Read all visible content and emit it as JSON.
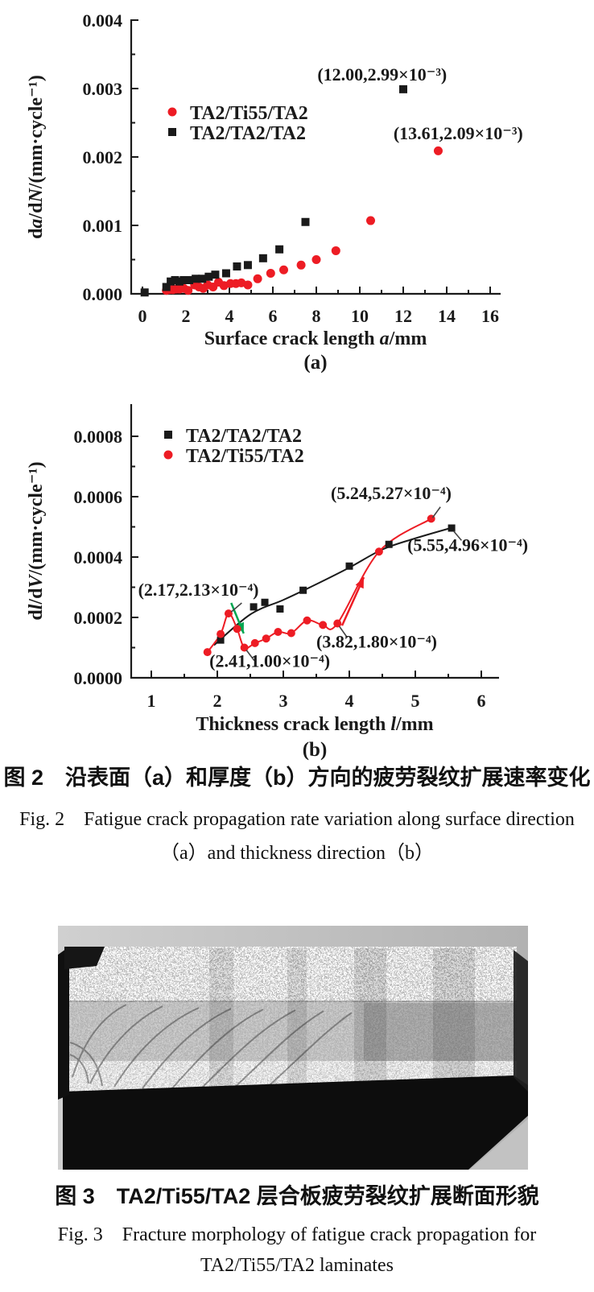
{
  "figure2": {
    "caption_zh": "图 2　沿表面（a）和厚度（b）方向的疲劳裂纹扩展速率变化",
    "caption_en_line1": "Fig. 2　Fatigue crack propagation rate variation along surface direction",
    "caption_en_line2": "（a）and thickness direction（b）"
  },
  "figure3": {
    "caption_zh": "图 3　TA2/Ti55/TA2 层合板疲劳裂纹扩展断面形貌",
    "caption_en_line1": "Fig. 3　Fracture morphology of fatigue crack propagation for",
    "caption_en_line2": "TA2/Ti55/TA2 laminates"
  },
  "chart_data": [
    {
      "id": "a",
      "type": "scatter",
      "sublabel": "(a)",
      "xlabel_parts": [
        [
          "Surface crack length ",
          0
        ],
        [
          "a",
          1
        ],
        [
          "/mm",
          0
        ]
      ],
      "ylabel_parts": [
        [
          "d",
          0
        ],
        [
          "a",
          1
        ],
        [
          "/d",
          0
        ],
        [
          "N",
          1
        ],
        [
          "/(mm·cycle⁻¹)",
          0
        ]
      ],
      "xlim": [
        0,
        16
      ],
      "ylim": [
        0,
        0.004
      ],
      "grid": false,
      "legend_position": "upper-left-inside",
      "x_ticks": [
        0,
        2,
        4,
        6,
        8,
        10,
        12,
        14,
        16
      ],
      "x_minor": [
        1,
        3,
        5,
        7,
        9,
        11,
        13,
        15
      ],
      "y_ticks": [
        {
          "v": 0,
          "label": "0.000"
        },
        {
          "v": 0.001,
          "label": "0.001"
        },
        {
          "v": 0.002,
          "label": "0.002"
        },
        {
          "v": 0.003,
          "label": "0.003"
        },
        {
          "v": 0.004,
          "label": "0.004"
        }
      ],
      "y_minor": [
        0.0005,
        0.0015,
        0.0025,
        0.0035
      ],
      "legend": [
        {
          "marker": "circle",
          "color": "#ed1c24",
          "label": "TA2/Ti55/TA2"
        },
        {
          "marker": "square",
          "color": "#1a1a1a",
          "label": "TA2/TA2/TA2"
        }
      ],
      "series": [
        {
          "name": "TA2/Ti55/TA2",
          "marker": "circle",
          "color": "#ed1c24",
          "points": [
            [
              1.1,
              5e-05
            ],
            [
              1.25,
              6e-05
            ],
            [
              1.4,
              6e-05
            ],
            [
              1.55,
              7e-05
            ],
            [
              1.7,
              7e-05
            ],
            [
              1.9,
              8e-05
            ],
            [
              2.1,
              5e-05
            ],
            [
              2.4,
              0.00013
            ],
            [
              2.6,
              0.0001
            ],
            [
              2.8,
              8e-05
            ],
            [
              3.0,
              0.00013
            ],
            [
              3.25,
              0.0001
            ],
            [
              3.5,
              0.00017
            ],
            [
              3.75,
              0.00012
            ],
            [
              4.05,
              0.00015
            ],
            [
              4.3,
              0.00015
            ],
            [
              4.55,
              0.00016
            ],
            [
              4.85,
              0.00013
            ],
            [
              5.3,
              0.00022
            ],
            [
              5.9,
              0.0003
            ],
            [
              6.5,
              0.00035
            ],
            [
              7.3,
              0.00042
            ],
            [
              8.0,
              0.0005
            ],
            [
              8.9,
              0.00063
            ],
            [
              10.5,
              0.00107
            ],
            [
              13.61,
              0.00209
            ]
          ]
        },
        {
          "name": "TA2/TA2/TA2",
          "marker": "square",
          "color": "#1a1a1a",
          "points": [
            [
              0.1,
              2e-05
            ],
            [
              1.1,
              0.0001
            ],
            [
              1.3,
              0.00018
            ],
            [
              1.5,
              0.0002
            ],
            [
              1.7,
              0.00018
            ],
            [
              1.9,
              0.0002
            ],
            [
              2.15,
              0.0002
            ],
            [
              2.45,
              0.00022
            ],
            [
              2.75,
              0.00022
            ],
            [
              3.05,
              0.00025
            ],
            [
              3.35,
              0.00028
            ],
            [
              3.85,
              0.0003
            ],
            [
              4.35,
              0.0004
            ],
            [
              4.85,
              0.00042
            ],
            [
              5.55,
              0.00052
            ],
            [
              6.3,
              0.00065
            ],
            [
              7.5,
              0.00105
            ],
            [
              12.0,
              0.00299
            ]
          ]
        }
      ],
      "annotations": [
        {
          "text": "(12.00,2.99×10⁻³)",
          "point": [
            12.0,
            0.00299
          ],
          "label_pos": [
            8.05,
            0.00312
          ]
        },
        {
          "text": "(13.61,2.09×10⁻³)",
          "point": [
            13.61,
            0.00209
          ],
          "label_pos": [
            11.55,
            0.00226
          ]
        }
      ],
      "arrows": []
    },
    {
      "id": "b",
      "type": "scatter-line",
      "sublabel": "(b)",
      "xlabel_parts": [
        [
          "Thickness crack length ",
          0
        ],
        [
          "l",
          1
        ],
        [
          "/mm",
          0
        ]
      ],
      "ylabel_parts": [
        [
          "d",
          0
        ],
        [
          "l",
          1
        ],
        [
          "/d",
          0
        ],
        [
          "V",
          1
        ],
        [
          "/(mm·cycle⁻¹)",
          0
        ]
      ],
      "xlim": [
        1,
        6
      ],
      "ylim": [
        0,
        0.0008
      ],
      "grid": false,
      "legend_position": "upper-left-inside",
      "x_ticks": [
        1,
        2,
        3,
        4,
        5,
        6
      ],
      "x_minor": [
        1.5,
        2.5,
        3.5,
        4.5,
        5.5
      ],
      "y_ticks": [
        {
          "v": 0,
          "label": "0.0000"
        },
        {
          "v": 0.0002,
          "label": "0.0002"
        },
        {
          "v": 0.0004,
          "label": "0.0004"
        },
        {
          "v": 0.0006,
          "label": "0.0006"
        },
        {
          "v": 0.0008,
          "label": "0.0008"
        }
      ],
      "y_minor": [
        0.0001,
        0.0003,
        0.0005,
        0.0007
      ],
      "legend": [
        {
          "marker": "square",
          "color": "#1a1a1a",
          "label": "TA2/TA2/TA2"
        },
        {
          "marker": "circle",
          "color": "#ed1c24",
          "label": "TA2/Ti55/TA2"
        }
      ],
      "series": [
        {
          "name": "TA2/TA2/TA2",
          "marker": "square",
          "color": "#1a1a1a",
          "points": [
            [
              2.05,
              0.000125
            ],
            [
              2.55,
              0.000235
            ],
            [
              2.72,
              0.00025
            ],
            [
              2.95,
              0.000228
            ],
            [
              3.3,
              0.00029
            ],
            [
              4.0,
              0.00037
            ],
            [
              4.6,
              0.000442
            ],
            [
              5.55,
              0.000496
            ]
          ],
          "line_points": [
            [
              1.95,
              0.000108
            ],
            [
              2.5,
              0.00021
            ],
            [
              3.0,
              0.000258
            ],
            [
              3.5,
              0.00031
            ],
            [
              4.0,
              0.000365
            ],
            [
              4.5,
              0.000425
            ],
            [
              5.0,
              0.000462
            ],
            [
              5.55,
              0.000497
            ]
          ]
        },
        {
          "name": "TA2/Ti55/TA2",
          "marker": "circle",
          "color": "#ed1c24",
          "line": "self",
          "points": [
            [
              1.85,
              8.5e-05
            ],
            [
              2.05,
              0.000145
            ],
            [
              2.17,
              0.000213
            ],
            [
              2.3,
              0.000162
            ],
            [
              2.41,
              0.0001
            ],
            [
              2.57,
              0.000115
            ],
            [
              2.74,
              0.00013
            ],
            [
              2.92,
              0.000152
            ],
            [
              3.12,
              0.000148
            ],
            [
              3.36,
              0.00019
            ],
            [
              3.6,
              0.000175
            ],
            [
              3.82,
              0.00018
            ],
            [
              4.45,
              0.000418
            ],
            [
              5.24,
              0.000527
            ]
          ]
        }
      ],
      "annotations": [
        {
          "text": "(2.17,2.13×10⁻⁴)",
          "point": [
            2.17,
            0.000213
          ],
          "label_pos": [
            0.8,
            0.000272
          ],
          "leader": [
            [
              2.37,
              0.000248
            ],
            [
              2.21,
              0.000218
            ]
          ]
        },
        {
          "text": "(2.41,1.00×10⁻⁴)",
          "point": [
            2.41,
            0.0001
          ],
          "label_pos": [
            1.88,
            3.6e-05
          ],
          "leader": [
            [
              2.44,
              9.2e-05
            ],
            [
              2.56,
              5.7e-05
            ]
          ]
        },
        {
          "text": "(3.82,1.80×10⁻⁴)",
          "point": [
            3.82,
            0.00018
          ],
          "label_pos": [
            3.5,
            0.0001
          ],
          "leader": [
            [
              3.85,
              0.00017
            ],
            [
              3.97,
              0.000133
            ]
          ]
        },
        {
          "text": "(5.24,5.27×10⁻⁴)",
          "point": [
            5.24,
            0.000527
          ],
          "label_pos": [
            3.72,
            0.000592
          ],
          "leader": [
            [
              5.38,
              0.000566
            ],
            [
              5.26,
              0.00053
            ]
          ]
        },
        {
          "text": "(5.55,4.96×10⁻⁴)",
          "point": [
            5.55,
            0.000496
          ],
          "label_pos": [
            4.88,
            0.00042
          ],
          "leader": [
            [
              5.58,
              0.000486
            ],
            [
              5.7,
              0.000455
            ]
          ]
        }
      ],
      "arrows": [
        {
          "color": "#00a651",
          "from": [
            2.21,
            0.000248
          ],
          "to": [
            2.4,
            0.000147
          ]
        },
        {
          "color": "#ed1c24",
          "from": [
            3.89,
            0.000173
          ],
          "to": [
            4.22,
            0.000333
          ]
        }
      ]
    }
  ]
}
